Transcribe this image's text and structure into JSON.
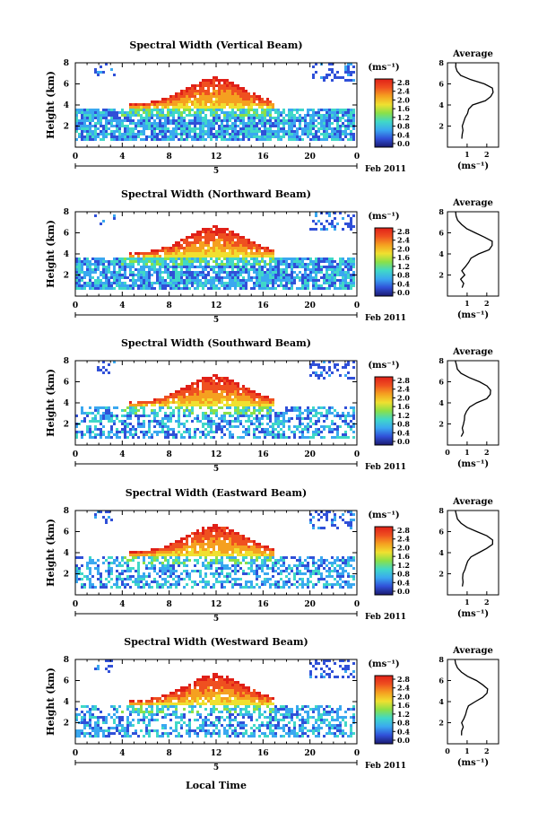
{
  "figure": {
    "xaxis_title": "Local Time",
    "unit_label": "(ms⁻¹)",
    "date_label": "Feb 2011",
    "day_label": "5",
    "avg_title": "Average",
    "colorbar_ticks": [
      "2.8",
      "2.4",
      "2.0",
      "1.6",
      "1.2",
      "0.8",
      "0.4",
      "0.0"
    ],
    "colormap": [
      "#1a1a70",
      "#3050d8",
      "#3aa8f0",
      "#40d8c8",
      "#8be048",
      "#f0e030",
      "#f5a020",
      "#ef5020",
      "#e02018"
    ]
  },
  "chart_data": [
    {
      "type": "heatmap",
      "title": "Spectral Width (Vertical Beam)",
      "ylabel": "Height (km)",
      "xlabel": "",
      "xlim": [
        0,
        24
      ],
      "ylim": [
        0,
        8
      ],
      "x_ticks": [
        "0",
        "4",
        "8",
        "12",
        "16",
        "20",
        "0"
      ],
      "y_ticks": [
        "2",
        "4",
        "6",
        "8"
      ],
      "colorbar_range": [
        0,
        2.8
      ],
      "avg_profile": {
        "xlim": [
          0,
          2.6
        ],
        "x_ticks": [
          "1",
          "2"
        ],
        "y_ticks": [
          "2",
          "4",
          "6",
          "8"
        ],
        "height": [
          0.8,
          1.2,
          1.6,
          2.0,
          2.4,
          2.8,
          3.2,
          3.6,
          4.0,
          4.4,
          4.8,
          5.2,
          5.6,
          6.0,
          6.4,
          6.8,
          7.2,
          7.6,
          8.0
        ],
        "width": [
          0.7,
          0.75,
          0.8,
          0.75,
          0.85,
          0.9,
          1.0,
          1.1,
          1.3,
          1.9,
          2.2,
          2.35,
          2.3,
          1.9,
          1.2,
          0.7,
          0.5,
          0.45,
          0.4
        ]
      }
    },
    {
      "type": "heatmap",
      "title": "Spectral Width (Northward Beam)",
      "ylabel": "Height (km)",
      "xlabel": "",
      "xlim": [
        0,
        24
      ],
      "ylim": [
        0,
        8
      ],
      "x_ticks": [
        "0",
        "4",
        "8",
        "12",
        "16",
        "20",
        "0"
      ],
      "y_ticks": [
        "2",
        "4",
        "6",
        "8"
      ],
      "colorbar_range": [
        0,
        2.8
      ],
      "avg_profile": {
        "xlim": [
          0,
          2.6
        ],
        "x_ticks": [
          "1",
          "2"
        ],
        "y_ticks": [
          "2",
          "4",
          "6",
          "8"
        ],
        "height": [
          0.8,
          1.2,
          1.6,
          2.0,
          2.4,
          2.8,
          3.2,
          3.6,
          4.0,
          4.4,
          4.8,
          5.2,
          5.6,
          6.0,
          6.4,
          6.8,
          7.2,
          7.6,
          8.0
        ],
        "width": [
          0.75,
          0.8,
          0.7,
          0.85,
          0.75,
          0.95,
          1.05,
          1.2,
          1.6,
          2.1,
          2.3,
          2.25,
          1.9,
          1.4,
          1.0,
          0.7,
          0.5,
          0.45,
          0.4
        ]
      }
    },
    {
      "type": "heatmap",
      "title": "Spectral Width (Southward Beam)",
      "ylabel": "Height (km)",
      "xlabel": "",
      "xlim": [
        0,
        24
      ],
      "ylim": [
        0,
        8
      ],
      "x_ticks": [
        "0",
        "4",
        "8",
        "12",
        "16",
        "20",
        "0"
      ],
      "y_ticks": [
        "2",
        "4",
        "6",
        "8"
      ],
      "colorbar_range": [
        0,
        2.8
      ],
      "avg_profile": {
        "xlim": [
          0,
          2.6
        ],
        "x_ticks": [
          "0",
          "1",
          "2"
        ],
        "y_ticks": [
          "2",
          "4",
          "6",
          "8"
        ],
        "height": [
          0.8,
          1.2,
          1.6,
          2.0,
          2.4,
          2.8,
          3.2,
          3.6,
          4.0,
          4.4,
          4.8,
          5.2,
          5.6,
          6.0,
          6.4,
          6.8,
          7.2,
          7.6,
          8.0
        ],
        "width": [
          0.7,
          0.8,
          0.75,
          0.8,
          0.85,
          0.9,
          1.0,
          1.15,
          1.5,
          2.0,
          2.2,
          2.2,
          2.0,
          1.6,
          1.1,
          0.7,
          0.5,
          0.45,
          0.4
        ]
      }
    },
    {
      "type": "heatmap",
      "title": "Spectral Width (Eastward Beam)",
      "ylabel": "Height (km)",
      "xlabel": "",
      "xlim": [
        0,
        24
      ],
      "ylim": [
        0,
        8
      ],
      "x_ticks": [
        "0",
        "4",
        "8",
        "12",
        "16",
        "20",
        "0"
      ],
      "y_ticks": [
        "2",
        "4",
        "6",
        "8"
      ],
      "colorbar_range": [
        0,
        2.8
      ],
      "avg_profile": {
        "xlim": [
          0,
          2.6
        ],
        "x_ticks": [
          "1",
          "2"
        ],
        "y_ticks": [
          "2",
          "4",
          "6",
          "8"
        ],
        "height": [
          0.8,
          1.2,
          1.6,
          2.0,
          2.4,
          2.8,
          3.2,
          3.6,
          4.0,
          4.4,
          4.8,
          5.2,
          5.6,
          6.0,
          6.4,
          6.8,
          7.2,
          7.6,
          8.0
        ],
        "width": [
          0.75,
          0.8,
          0.75,
          0.8,
          0.9,
          0.95,
          1.0,
          1.2,
          1.6,
          2.0,
          2.3,
          2.3,
          2.0,
          1.5,
          1.0,
          0.7,
          0.5,
          0.45,
          0.4
        ]
      }
    },
    {
      "type": "heatmap",
      "title": "Spectral Width (Westward Beam)",
      "ylabel": "Height (km)",
      "xlabel": "Local Time",
      "xlim": [
        0,
        24
      ],
      "ylim": [
        0,
        8
      ],
      "x_ticks": [
        "0",
        "4",
        "8",
        "12",
        "16",
        "20",
        "0"
      ],
      "y_ticks": [
        "2",
        "4",
        "6",
        "8"
      ],
      "colorbar_range": [
        0,
        2.8
      ],
      "avg_profile": {
        "xlim": [
          0,
          2.6
        ],
        "x_ticks": [
          "0",
          "1",
          "2"
        ],
        "y_ticks": [
          "2",
          "4",
          "6",
          "8"
        ],
        "height": [
          0.8,
          1.2,
          1.6,
          2.0,
          2.4,
          2.8,
          3.2,
          3.6,
          4.0,
          4.4,
          4.8,
          5.2,
          5.6,
          6.0,
          6.4,
          6.8,
          7.2,
          7.6,
          8.0
        ],
        "width": [
          0.7,
          0.75,
          0.8,
          0.75,
          0.85,
          0.9,
          1.0,
          1.1,
          1.4,
          1.8,
          2.0,
          2.05,
          1.8,
          1.5,
          1.0,
          0.7,
          0.5,
          0.45,
          0.4
        ]
      }
    }
  ]
}
